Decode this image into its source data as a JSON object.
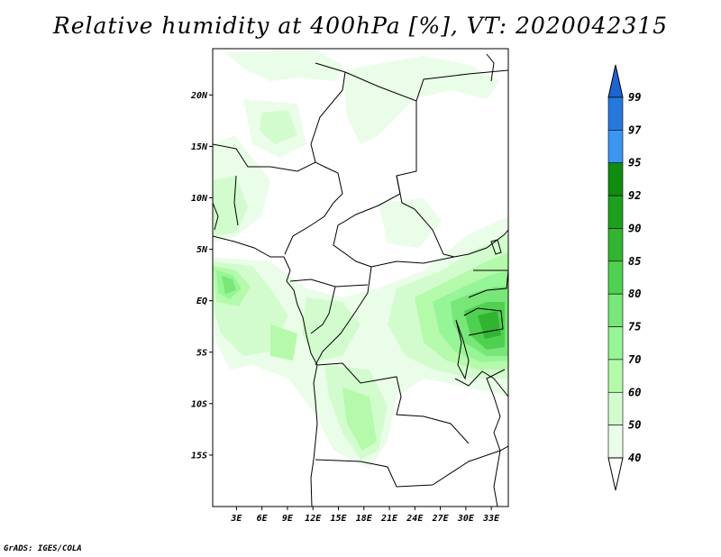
{
  "title": "Relative humidity at 400hPa [%], VT: 2020042315",
  "credit": "GrADS: IGES/COLA",
  "map": {
    "lat_ticks": [
      "20N",
      "15N",
      "10N",
      "5N",
      "EQ",
      "5S",
      "10S",
      "15S"
    ],
    "lat_values": [
      20,
      15,
      10,
      5,
      0,
      -5,
      -10,
      -15
    ],
    "lon_ticks": [
      "3E",
      "6E",
      "9E",
      "12E",
      "15E",
      "18E",
      "21E",
      "24E",
      "27E",
      "30E",
      "33E"
    ],
    "lon_values": [
      3,
      6,
      9,
      12,
      15,
      18,
      21,
      24,
      27,
      30,
      33
    ],
    "lon_range": [
      0.2,
      35
    ],
    "lat_range": [
      -20,
      24.5
    ]
  },
  "colorbar": {
    "levels": [
      "99",
      "97",
      "95",
      "92",
      "90",
      "85",
      "80",
      "75",
      "70",
      "60",
      "50",
      "40"
    ],
    "colors": [
      "#1e64d2",
      "#2878dc",
      "#3c96f0",
      "#108c10",
      "#1ea01e",
      "#32b432",
      "#50d050",
      "#78e678",
      "#96f596",
      "#b4faaa",
      "#d2fcce",
      "#eafde8"
    ]
  },
  "colors": {
    "background": "#ffffff",
    "boundary": "#000000"
  }
}
